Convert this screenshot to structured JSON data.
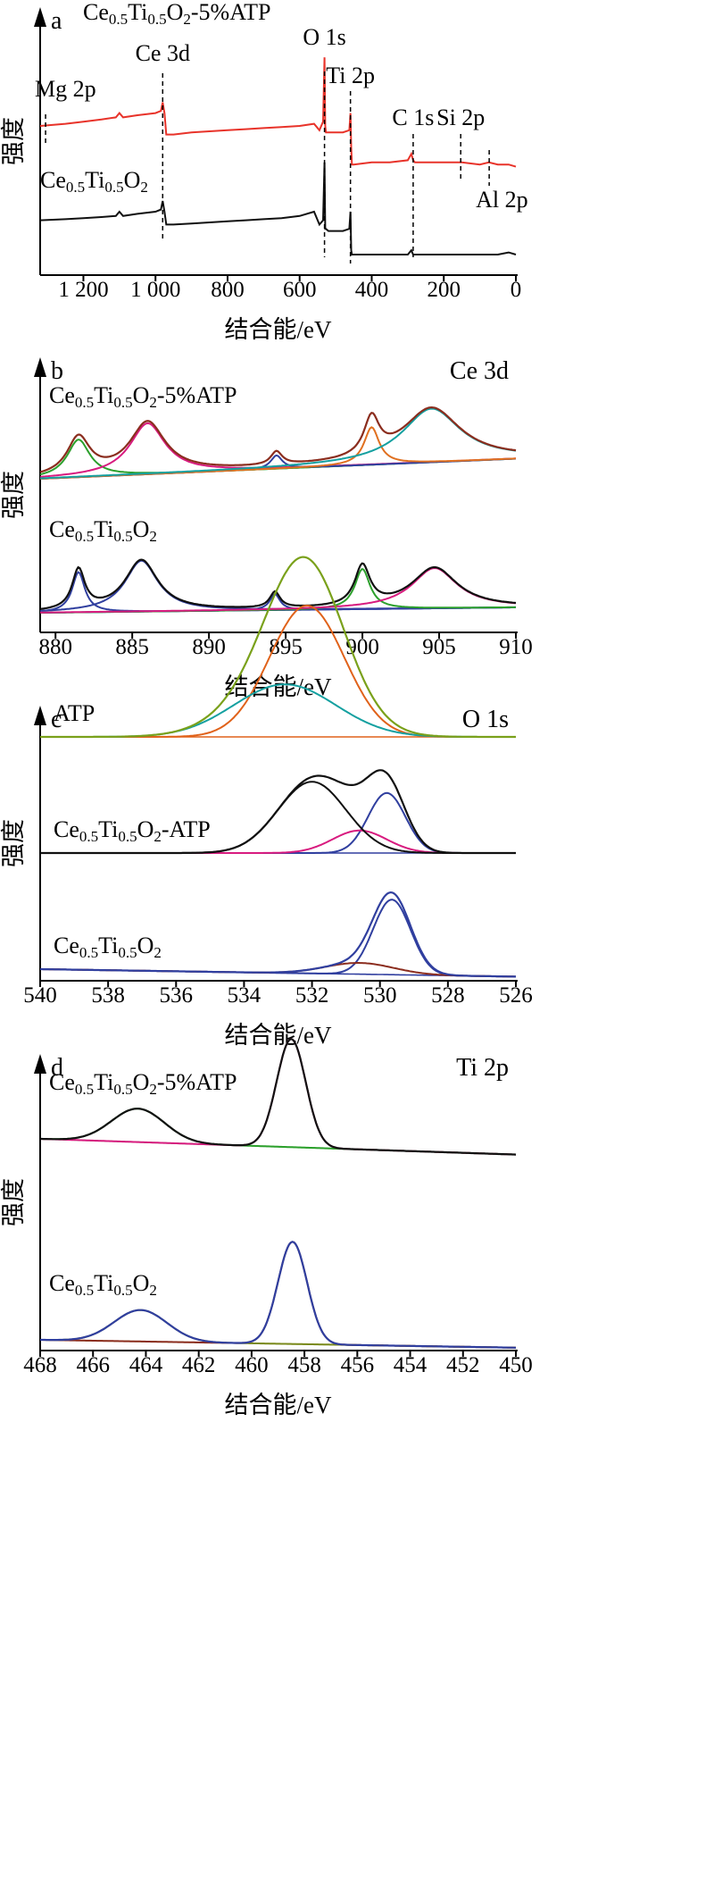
{
  "chart_data": [
    {
      "type": "line",
      "panel_label": "a",
      "xlabel": "结合能/eV",
      "ylabel": "强度",
      "xlim": [
        1320,
        0
      ],
      "x_reversed": true,
      "x_ticks": [
        1200,
        1000,
        800,
        600,
        400,
        200,
        0
      ],
      "x_tick_labels": [
        "1 200",
        "1 000",
        "800",
        "600",
        "400",
        "200",
        "0"
      ],
      "series": [
        {
          "name": "Ce0.5Ti0.5O2-5%ATP",
          "label_parts": [
            "Ce",
            "0.5",
            "Ti",
            "0.5",
            "O",
            "2",
            "-5%ATP"
          ],
          "color": "#e8332a",
          "x": [
            1320,
            1250,
            1200,
            1150,
            1110,
            1100,
            1090,
            1050,
            1000,
            985,
            980,
            975,
            970,
            950,
            900,
            850,
            800,
            750,
            700,
            650,
            600,
            560,
            545,
            535,
            531,
            529,
            527,
            520,
            480,
            462,
            459,
            457,
            455,
            450,
            400,
            350,
            300,
            290,
            285,
            280,
            250,
            200,
            150,
            100,
            75,
            50,
            20,
            0
          ],
          "y": [
            0.6,
            0.61,
            0.62,
            0.63,
            0.64,
            0.66,
            0.64,
            0.65,
            0.66,
            0.67,
            0.71,
            0.66,
            0.56,
            0.56,
            0.57,
            0.575,
            0.58,
            0.585,
            0.59,
            0.595,
            0.6,
            0.61,
            0.58,
            0.62,
            0.92,
            0.6,
            0.57,
            0.57,
            0.57,
            0.58,
            0.66,
            0.5,
            0.42,
            0.42,
            0.43,
            0.43,
            0.44,
            0.47,
            0.44,
            0.43,
            0.43,
            0.43,
            0.43,
            0.42,
            0.43,
            0.42,
            0.42,
            0.41
          ]
        },
        {
          "name": "Ce0.5Ti0.5O2",
          "label_parts": [
            "Ce",
            "0.5",
            "Ti",
            "0.5",
            "O",
            "2",
            ""
          ],
          "color": "#111111",
          "x": [
            1320,
            1250,
            1200,
            1150,
            1110,
            1100,
            1090,
            1050,
            1000,
            985,
            980,
            975,
            970,
            950,
            900,
            850,
            800,
            750,
            700,
            650,
            600,
            560,
            545,
            535,
            531,
            529,
            527,
            520,
            480,
            462,
            459,
            457,
            455,
            450,
            400,
            350,
            300,
            290,
            285,
            280,
            250,
            200,
            150,
            100,
            50,
            20,
            0
          ],
          "y": [
            0.16,
            0.165,
            0.17,
            0.175,
            0.18,
            0.2,
            0.18,
            0.19,
            0.2,
            0.21,
            0.25,
            0.2,
            0.14,
            0.14,
            0.145,
            0.15,
            0.155,
            0.16,
            0.165,
            0.17,
            0.18,
            0.2,
            0.14,
            0.16,
            0.43,
            0.12,
            0.12,
            0.11,
            0.11,
            0.12,
            0.2,
            0.02,
            0.0,
            0.0,
            0.0,
            0.0,
            0.0,
            0.02,
            0.0,
            0.0,
            0.0,
            0.0,
            0.0,
            0.0,
            0.0,
            0.01,
            0.0
          ]
        }
      ],
      "annotations": [
        {
          "text": "Mg 2p",
          "x": 1305
        },
        {
          "text": "Ce 3d",
          "x": 980
        },
        {
          "text": "O 1s",
          "x": 531
        },
        {
          "text": "Ti 2p",
          "x": 459
        },
        {
          "text": "C 1s",
          "x": 285
        },
        {
          "text": "Si 2p",
          "x": 153
        },
        {
          "text": "Al 2p",
          "x": 74
        }
      ]
    },
    {
      "type": "line",
      "panel_label": "b",
      "panel_title": "Ce 3d",
      "xlabel": "结合能/eV",
      "ylabel": "强度",
      "xlim": [
        879,
        910
      ],
      "x_ticks": [
        880,
        885,
        890,
        895,
        900,
        905,
        910
      ],
      "x_tick_labels": [
        "880",
        "885",
        "890",
        "895",
        "900",
        "905",
        "910"
      ],
      "samples": [
        {
          "name": "Ce0.5Ti0.5O2-5%ATP",
          "label_parts": [
            "Ce",
            "0.5",
            "Ti",
            "0.5",
            "O",
            "2",
            "-5%ATP"
          ],
          "baseline": [
            0.62,
            0.77
          ],
          "measured_color": "#8b2d1e",
          "peaks": [
            {
              "center": 881.5,
              "height": 0.28,
              "width": 0.9,
              "color": "#2ca02c"
            },
            {
              "center": 886.0,
              "height": 0.38,
              "width": 1.4,
              "color": "#d81b7f"
            },
            {
              "center": 894.4,
              "height": 0.1,
              "width": 0.45,
              "color": "#303f9f"
            },
            {
              "center": 900.6,
              "height": 0.28,
              "width": 0.6,
              "color": "#e07020"
            },
            {
              "center": 904.5,
              "height": 0.4,
              "width": 2.3,
              "color": "#14a0a0"
            }
          ]
        },
        {
          "name": "Ce0.5Ti0.5O2",
          "label_parts": [
            "Ce",
            "0.5",
            "Ti",
            "0.5",
            "O",
            "2",
            ""
          ],
          "baseline": [
            0.0,
            0.04
          ],
          "measured_color": "#111111",
          "peaks": [
            {
              "center": 881.5,
              "height": 0.3,
              "width": 0.5,
              "color": "#303f9f"
            },
            {
              "center": 885.6,
              "height": 0.38,
              "width": 1.3,
              "color": "#303f9f"
            },
            {
              "center": 894.3,
              "height": 0.12,
              "width": 0.4,
              "color": "#303f9f"
            },
            {
              "center": 900.0,
              "height": 0.3,
              "width": 0.6,
              "color": "#2ca02c"
            },
            {
              "center": 904.7,
              "height": 0.3,
              "width": 1.8,
              "color": "#d81b7f"
            }
          ]
        }
      ]
    },
    {
      "type": "line",
      "panel_label": "c",
      "panel_title": "O 1s",
      "xlabel": "结合能/eV",
      "ylabel": "强度",
      "xlim": [
        540,
        526
      ],
      "x_reversed": true,
      "x_ticks": [
        540,
        538,
        536,
        534,
        532,
        530,
        528,
        526
      ],
      "x_tick_labels": [
        "540",
        "538",
        "536",
        "534",
        "532",
        "530",
        "528",
        "526"
      ],
      "samples": [
        {
          "name": "ATP",
          "label_parts": [
            "ATP",
            "",
            "",
            "",
            "",
            "",
            ""
          ],
          "baseline": [
            0.62,
            0.62
          ],
          "sum_color": "#7aa11b",
          "peaks": [
            {
              "center": 532.15,
              "height": 0.7,
              "width": 1.1,
              "color": "#e0621a"
            },
            {
              "center": 532.8,
              "height": 0.28,
              "width": 1.5,
              "color": "#14a0a0"
            }
          ]
        },
        {
          "name": "Ce0.5Ti0.5O2-ATP",
          "label_parts": [
            "Ce",
            "0.5",
            "Ti",
            "0.5",
            "O",
            "2",
            "-ATP"
          ],
          "baseline": [
            0.34,
            0.34
          ],
          "sum_color": "#111111",
          "peaks": [
            {
              "center": 529.8,
              "height": 0.32,
              "width": 0.55,
              "color": "#303f9f"
            },
            {
              "center": 530.6,
              "height": 0.12,
              "width": 0.8,
              "color": "#d81b7f"
            },
            {
              "center": 532.0,
              "height": 0.38,
              "width": 1.0,
              "color": "#111111"
            }
          ]
        },
        {
          "name": "Ce0.5Ti0.5O2",
          "label_parts": [
            "Ce",
            "0.5",
            "Ti",
            "0.5",
            "O",
            "2",
            ""
          ],
          "baseline": [
            0.06,
            0.02
          ],
          "sum_color": "#303f9f",
          "peaks": [
            {
              "center": 529.65,
              "height": 0.4,
              "width": 0.55,
              "color": "#303f9f"
            },
            {
              "center": 530.6,
              "height": 0.06,
              "width": 1.0,
              "color": "#8b2d1e"
            }
          ]
        }
      ]
    },
    {
      "type": "line",
      "panel_label": "d",
      "panel_title": "Ti 2p",
      "xlabel": "结合能/eV",
      "ylabel": "强度",
      "xlim": [
        468,
        450
      ],
      "x_reversed": true,
      "x_ticks": [
        468,
        466,
        464,
        462,
        460,
        458,
        456,
        454,
        452,
        450
      ],
      "x_tick_labels": [
        "468",
        "466",
        "464",
        "462",
        "460",
        "458",
        "456",
        "454",
        "452",
        "450"
      ],
      "samples": [
        {
          "name": "Ce0.5Ti0.5O2-5%ATP",
          "label_parts": [
            "Ce",
            "0.5",
            "Ti",
            "0.5",
            "O",
            "2",
            "-5%ATP"
          ],
          "baseline": [
            0.7,
            0.62
          ],
          "sum_color": "#111111",
          "peaks": [
            {
              "center": 464.3,
              "height": 0.17,
              "width": 1.0,
              "color": "#2ca02c"
            },
            {
              "center": 458.5,
              "height": 0.55,
              "width": 0.55,
              "color": "#d81b7f"
            }
          ]
        },
        {
          "name": "Ce0.5Ti0.5O2",
          "label_parts": [
            "Ce",
            "0.5",
            "Ti",
            "0.5",
            "O",
            "2",
            ""
          ],
          "baseline": [
            0.04,
            0.0
          ],
          "sum_color": "#303f9f",
          "peaks": [
            {
              "center": 464.2,
              "height": 0.16,
              "width": 1.0,
              "color": "#7a8a1c"
            },
            {
              "center": 458.45,
              "height": 0.52,
              "width": 0.55,
              "color": "#8b2d1e"
            }
          ]
        }
      ]
    }
  ]
}
